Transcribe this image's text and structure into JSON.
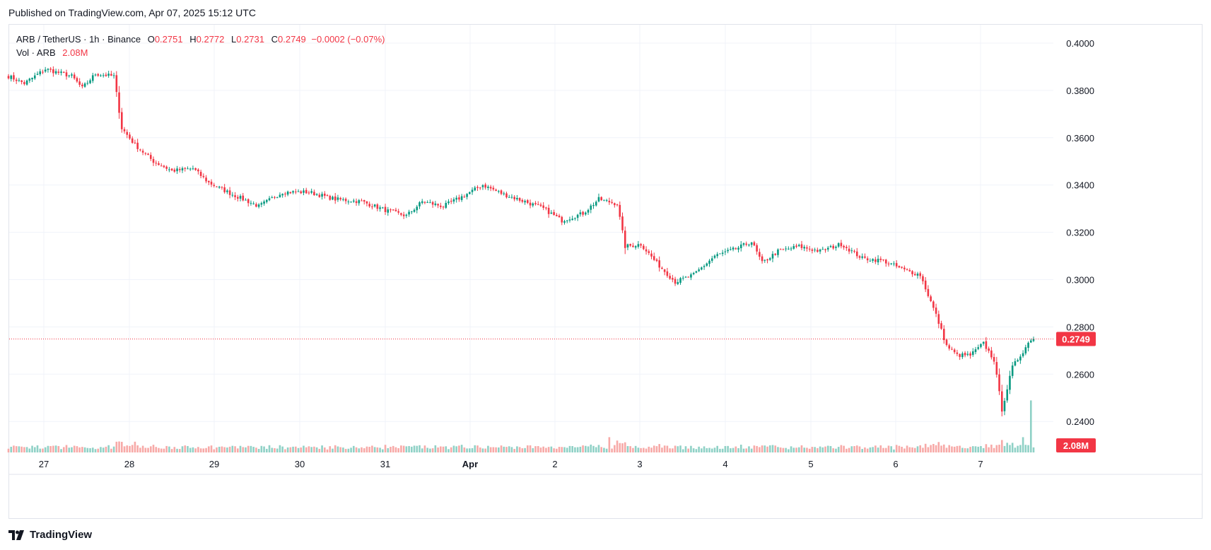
{
  "header": {
    "published": "Published on TradingView.com, Apr 07, 2025 15:12 UTC"
  },
  "legend": {
    "symbol": "ARB / TetherUS · 1h · Binance",
    "open_label": "O",
    "open": "0.2751",
    "high_label": "H",
    "high": "0.2772",
    "low_label": "L",
    "low": "0.2731",
    "close_label": "C",
    "close": "0.2749",
    "change": "−0.0002 (−0.07%)",
    "vol_label": "Vol · ARB",
    "vol_value": "2.08M"
  },
  "footer": {
    "brand": "TradingView",
    "logo_icon": "tradingview-logo-icon"
  },
  "colors": {
    "up": "#089981",
    "down": "#f23645",
    "up_volume": "#8fd1c6",
    "down_volume": "#f7a9a7",
    "grid": "#f0f3fa"
  },
  "chart_data": {
    "type": "candlestick",
    "symbol": "ARB/USDT",
    "interval": "1h",
    "ylim": [
      0.23,
      0.407
    ],
    "y_ticks": [
      "0.4000",
      "0.3800",
      "0.3600",
      "0.3400",
      "0.3200",
      "0.3000",
      "0.2800",
      "0.2600",
      "0.2400"
    ],
    "x_ticks": [
      "27",
      "28",
      "29",
      "30",
      "31",
      "Apr",
      "2",
      "3",
      "4",
      "5",
      "6",
      "7"
    ],
    "last_price": "0.2749",
    "last_volume": "2.08M",
    "price_path_anchors": [
      [
        0,
        0.386
      ],
      [
        6,
        0.383
      ],
      [
        14,
        0.389
      ],
      [
        24,
        0.386
      ],
      [
        28,
        0.381
      ],
      [
        33,
        0.387
      ],
      [
        40,
        0.386
      ],
      [
        43,
        0.364
      ],
      [
        48,
        0.357
      ],
      [
        55,
        0.35
      ],
      [
        62,
        0.346
      ],
      [
        70,
        0.347
      ],
      [
        76,
        0.341
      ],
      [
        85,
        0.336
      ],
      [
        95,
        0.331
      ],
      [
        104,
        0.337
      ],
      [
        114,
        0.337
      ],
      [
        124,
        0.334
      ],
      [
        134,
        0.333
      ],
      [
        144,
        0.329
      ],
      [
        151,
        0.327
      ],
      [
        157,
        0.333
      ],
      [
        165,
        0.331
      ],
      [
        172,
        0.335
      ],
      [
        180,
        0.34
      ],
      [
        188,
        0.336
      ],
      [
        196,
        0.333
      ],
      [
        203,
        0.33
      ],
      [
        210,
        0.325
      ],
      [
        218,
        0.328
      ],
      [
        224,
        0.334
      ],
      [
        231,
        0.332
      ],
      [
        234,
        0.314
      ],
      [
        240,
        0.315
      ],
      [
        246,
        0.307
      ],
      [
        253,
        0.299
      ],
      [
        260,
        0.302
      ],
      [
        268,
        0.31
      ],
      [
        276,
        0.313
      ],
      [
        282,
        0.316
      ],
      [
        286,
        0.307
      ],
      [
        292,
        0.312
      ],
      [
        300,
        0.314
      ],
      [
        308,
        0.312
      ],
      [
        316,
        0.315
      ],
      [
        324,
        0.309
      ],
      [
        332,
        0.308
      ],
      [
        340,
        0.304
      ],
      [
        346,
        0.302
      ],
      [
        352,
        0.285
      ],
      [
        356,
        0.272
      ],
      [
        360,
        0.268
      ],
      [
        365,
        0.268
      ],
      [
        370,
        0.273
      ],
      [
        374,
        0.266
      ],
      [
        377,
        0.245
      ],
      [
        381,
        0.263
      ],
      [
        384,
        0.268
      ],
      [
        388,
        0.2749
      ]
    ],
    "volume_spikes": [
      [
        48,
        0.95
      ],
      [
        228,
        1.35
      ],
      [
        231,
        1.05
      ],
      [
        254,
        0.55
      ],
      [
        351,
        0.75
      ],
      [
        353,
        0.92
      ],
      [
        357,
        0.65
      ],
      [
        377,
        1.1
      ],
      [
        381,
        0.85
      ],
      [
        385,
        1.35
      ],
      [
        388,
        4.6
      ]
    ]
  }
}
